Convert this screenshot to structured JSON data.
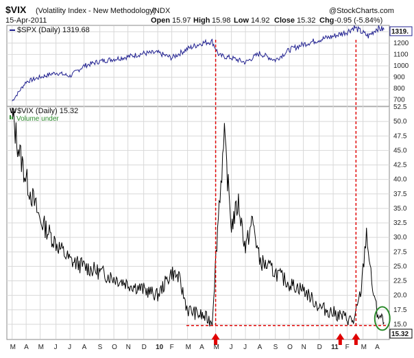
{
  "header": {
    "symbol": "$VIX",
    "name": "(Volatility Index - New Methodology)",
    "exchange": "INDX",
    "date": "15-Apr-2011",
    "copyright": "@StockCharts.com",
    "open_label": "Open",
    "open": "15.97",
    "high_label": "High",
    "high": "15.98",
    "low_label": "Low",
    "low": "14.92",
    "close_label": "Close",
    "close": "15.32",
    "chg_label": "Chg",
    "chg": "-0.95 (-5.84%)"
  },
  "top_panel": {
    "legend": "$SPX (Daily) 1319.68",
    "last_value": "1319.",
    "color": "#1f1f8f"
  },
  "bottom_panel": {
    "legend": "$VIX (Daily) 15.32",
    "volume_note": "Volume under",
    "last_value": "15.32",
    "color": "#000000"
  },
  "colors": {
    "annotation": "#e00000",
    "circle": "#2a8a2a",
    "grid": "#d8d8d8"
  },
  "chart_data": [
    {
      "type": "line",
      "series": [
        {
          "name": "$SPX (Daily)",
          "x": [
            2009.17,
            2009.25,
            2009.33,
            2009.42,
            2009.5,
            2009.58,
            2009.67,
            2009.75,
            2009.83,
            2009.92,
            2010.0,
            2010.08,
            2010.17,
            2010.25,
            2010.31,
            2010.35,
            2010.42,
            2010.5,
            2010.58,
            2010.67,
            2010.75,
            2010.83,
            2010.92,
            2011.0,
            2011.08,
            2011.12,
            2011.2,
            2011.25,
            2011.29
          ],
          "values": [
            690,
            860,
            900,
            940,
            910,
            1000,
            1040,
            1060,
            1080,
            1110,
            1115,
            1070,
            1150,
            1200,
            1215,
            1090,
            1070,
            1030,
            1110,
            1050,
            1140,
            1190,
            1230,
            1260,
            1300,
            1340,
            1260,
            1330,
            1320
          ]
        }
      ],
      "ylim": [
        650,
        1350
      ],
      "yticks": [
        700,
        800,
        900,
        1000,
        1100,
        1200,
        1300
      ]
    },
    {
      "type": "line",
      "series": [
        {
          "name": "$VIX (Daily)",
          "x": [
            2009.17,
            2009.21,
            2009.25,
            2009.33,
            2009.42,
            2009.5,
            2009.58,
            2009.67,
            2009.75,
            2009.83,
            2009.92,
            2010.0,
            2010.08,
            2010.12,
            2010.17,
            2010.25,
            2010.31,
            2010.35,
            2010.38,
            2010.42,
            2010.46,
            2010.5,
            2010.54,
            2010.58,
            2010.67,
            2010.75,
            2010.83,
            2010.92,
            2011.0,
            2011.08,
            2011.12,
            2011.16,
            2011.19,
            2011.22,
            2011.25,
            2011.29
          ],
          "values": [
            51,
            45,
            40,
            33,
            29,
            26,
            25,
            24,
            23,
            22,
            21,
            20,
            24,
            23,
            17.5,
            16.5,
            15.5,
            36,
            47,
            32,
            36,
            28,
            33,
            26,
            24,
            22,
            21,
            18,
            17,
            16,
            15.5,
            21,
            31,
            22,
            17,
            15.3
          ]
        }
      ],
      "ylim": [
        12.5,
        52.5
      ],
      "yticks": [
        15,
        17.5,
        20,
        22.5,
        25,
        27.5,
        30,
        32.5,
        35,
        37.5,
        40,
        42.5,
        45,
        47.5,
        50,
        52.5
      ],
      "annotation_level": 14.8
    }
  ],
  "x_axis": {
    "labels": [
      "M",
      "A",
      "M",
      "J",
      "J",
      "A",
      "S",
      "O",
      "N",
      "D",
      "10",
      "F",
      "M",
      "A",
      "M",
      "J",
      "J",
      "A",
      "S",
      "O",
      "N",
      "D",
      "11",
      "F",
      "M",
      "A"
    ],
    "positions": [
      2009.17,
      2009.25,
      2009.33,
      2009.42,
      2009.5,
      2009.58,
      2009.67,
      2009.75,
      2009.83,
      2009.92,
      2010.0,
      2010.08,
      2010.17,
      2010.25,
      2010.33,
      2010.42,
      2010.5,
      2010.58,
      2010.67,
      2010.75,
      2010.83,
      2010.92,
      2011.0,
      2011.08,
      2011.17,
      2011.25
    ],
    "range": [
      2009.14,
      2011.32
    ]
  },
  "annotations": {
    "vertical_lines": [
      2010.33,
      2011.13
    ],
    "arrows": [
      2010.33,
      2011.04,
      2011.13
    ],
    "circle_at": [
      2011.28,
      16.0
    ]
  }
}
